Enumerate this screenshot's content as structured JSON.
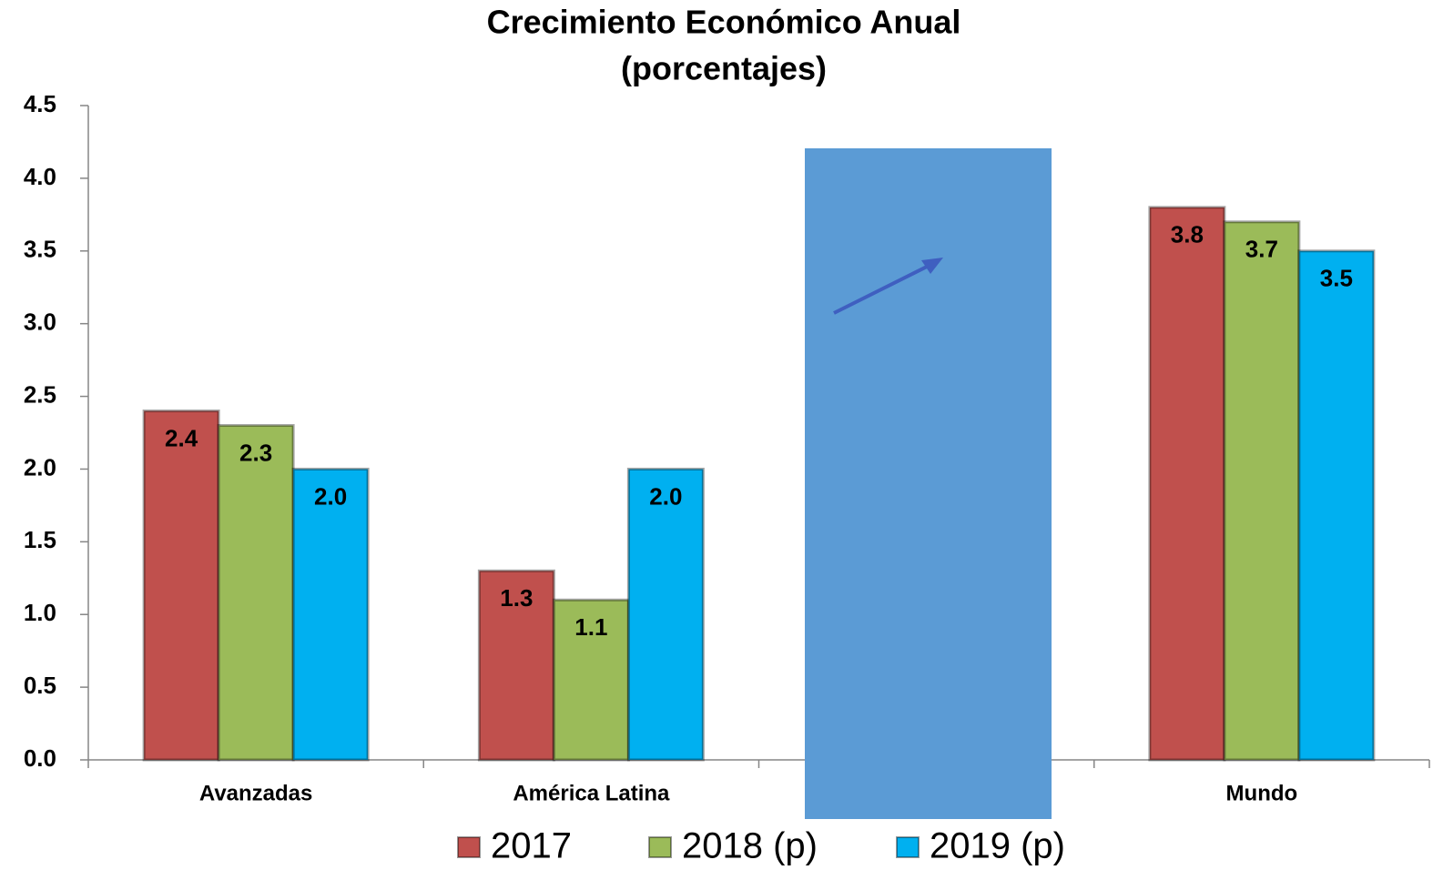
{
  "chart_data": {
    "type": "bar",
    "title": "Crecimiento Económico Anual",
    "subtitle": "(porcentajes)",
    "categories": [
      "Avanzadas",
      "América Latina",
      null,
      "Mundo"
    ],
    "series": [
      {
        "name": "2017",
        "color": "#c0504d",
        "values": [
          2.4,
          1.3,
          null,
          3.8
        ],
        "value_labels": [
          "2.4",
          "1.3",
          null,
          "3.8"
        ]
      },
      {
        "name": "2018 (p)",
        "color": "#9bbb59",
        "values": [
          2.3,
          1.1,
          null,
          3.7
        ],
        "value_labels": [
          "2.3",
          "1.1",
          null,
          "3.7"
        ]
      },
      {
        "name": "2019 (p)",
        "color": "#00b0f0",
        "values": [
          2.0,
          2.0,
          null,
          3.5
        ],
        "value_labels": [
          "2.0",
          "2.0",
          null,
          "3.5"
        ]
      }
    ],
    "ylim": [
      0,
      4.5
    ],
    "yticks": [
      {
        "value": 0,
        "label": "0.0"
      },
      0.5,
      {
        "value": 1,
        "label": "1.0"
      },
      1.5,
      {
        "value": 2,
        "label": "2.0"
      },
      2.5,
      {
        "value": 3,
        "label": "3.0"
      },
      3.5,
      {
        "value": 4,
        "label": "4.0"
      },
      4.5
    ]
  }
}
